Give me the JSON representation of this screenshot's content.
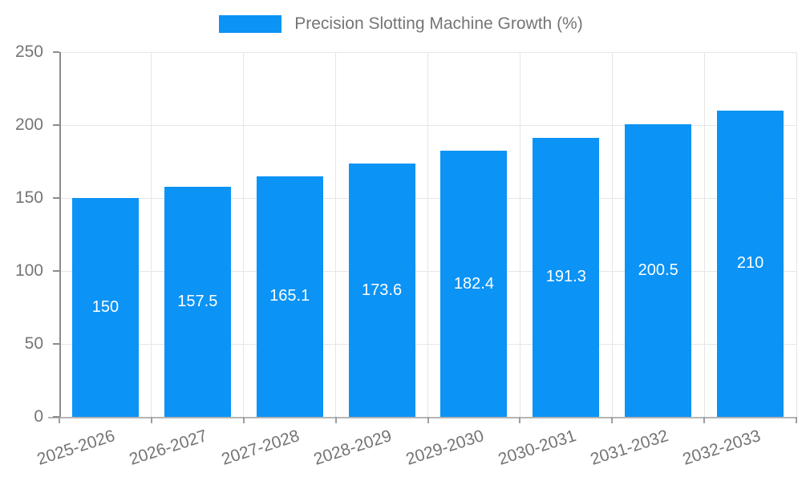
{
  "chart_data": {
    "type": "bar",
    "title": "Precision Slotting Machine Growth (%)",
    "categories": [
      "2025-2026",
      "2026-2027",
      "2027-2028",
      "2028-2029",
      "2029-2030",
      "2030-2031",
      "2031-2032",
      "2032-2033"
    ],
    "series": [
      {
        "name": "Precision Slotting Machine Growth (%)",
        "values": [
          150,
          157.5,
          165.1,
          173.6,
          182.4,
          191.3,
          200.5,
          210
        ],
        "value_labels": [
          "150",
          "157.5",
          "165.1",
          "173.6",
          "182.4",
          "191.3",
          "200.5",
          "210"
        ]
      }
    ],
    "xlabel": "",
    "ylabel": "",
    "ylim": [
      0,
      250
    ],
    "yticks": [
      0,
      50,
      100,
      150,
      200,
      250
    ],
    "grid": true,
    "legend_position": "top",
    "bar_labels_position": "inside-center",
    "colors": {
      "bar": "#0b93f5",
      "bar_label_text": "#ffffff",
      "axis_text": "#757575",
      "gridline": "#e6e6e6",
      "axis_line": "#8c8c8c",
      "baseline": "#b5b5b5",
      "background": "#ffffff"
    }
  }
}
